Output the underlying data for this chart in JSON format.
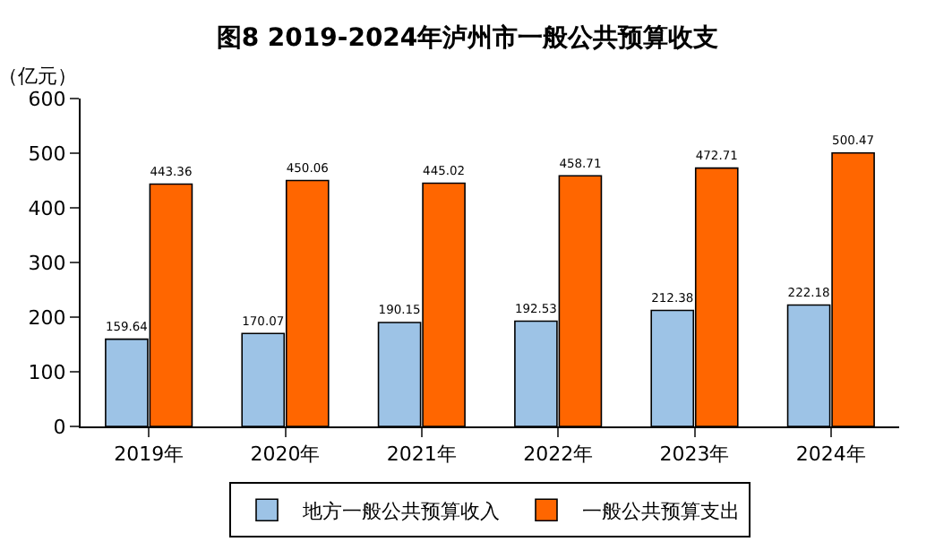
{
  "chart_data": {
    "type": "bar",
    "title": "图8 2019-2024年泸州市一般公共预算收支",
    "ylabel": "（亿元）",
    "categories": [
      "2019年",
      "2020年",
      "2021年",
      "2022年",
      "2023年",
      "2024年"
    ],
    "series": [
      {
        "name": "地方一般公共预算收入",
        "color": "#9dc3e6",
        "values": [
          159.64,
          170.07,
          190.15,
          192.53,
          212.38,
          222.18
        ]
      },
      {
        "name": "一般公共预算支出",
        "color": "#ff6600",
        "values": [
          443.36,
          450.06,
          445.02,
          458.71,
          472.71,
          500.47
        ]
      }
    ],
    "ylim": [
      0,
      600
    ],
    "yticks": [
      0,
      100,
      200,
      300,
      400,
      500,
      600
    ],
    "grid": false,
    "legend": "bottom",
    "data_labels": true
  }
}
